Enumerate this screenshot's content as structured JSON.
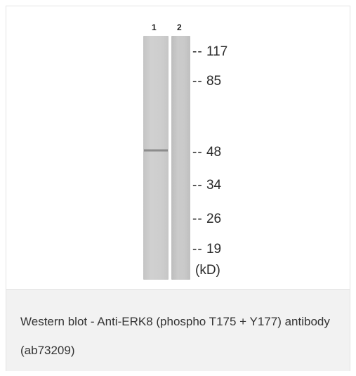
{
  "blot": {
    "lanes": [
      "1",
      "2"
    ],
    "markers": [
      {
        "dash": "--",
        "value": "117"
      },
      {
        "dash": "--",
        "value": "85"
      },
      {
        "dash": "--",
        "value": "48"
      },
      {
        "dash": "--",
        "value": "34"
      },
      {
        "dash": "--",
        "value": "26"
      },
      {
        "dash": "--",
        "value": "19"
      }
    ],
    "unit": "(kD)"
  },
  "caption": {
    "text": "Western blot - Anti-ERK8 (phospho T175 + Y177) antibody (ab73209)"
  }
}
